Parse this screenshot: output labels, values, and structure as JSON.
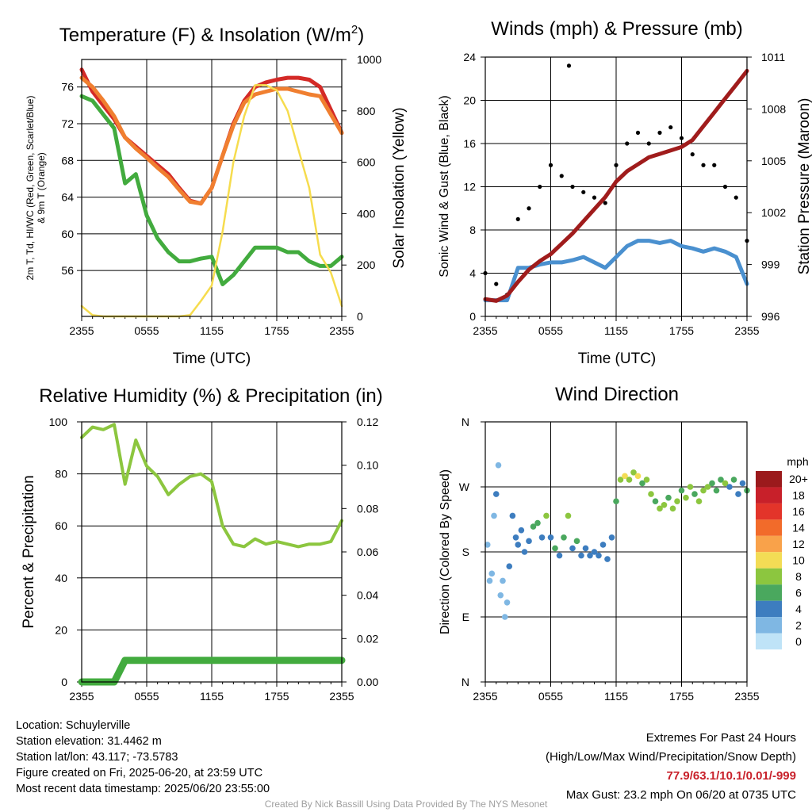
{
  "chart_data": [
    {
      "type": "line",
      "title": "Temperature (F) & Insolation (W/m²)",
      "title_main": "Temperature (F) & Insolation (W/m",
      "title_sup": "2",
      "title_end": ")",
      "xlabel": "Time (UTC)",
      "ylabel_lines": [
        "2m T, Td, HI/WC (Red, Green, Scarlet/Blue)",
        "& 9m T (Orange)"
      ],
      "ylabel_lines_note": "subscript d in Td",
      "y2label": "Solar Insolation (Yellow)",
      "xticks": [
        "2355",
        "0555",
        "1155",
        "1755",
        "2355"
      ],
      "ylim": [
        51,
        79
      ],
      "yticks": [
        56,
        60,
        64,
        68,
        72,
        76
      ],
      "y2lim": [
        0,
        1000
      ],
      "y2ticks": [
        0,
        200,
        400,
        600,
        800,
        1000
      ],
      "grid": true,
      "x": [
        0,
        1,
        2,
        3,
        4,
        5,
        6,
        7,
        8,
        9,
        10,
        11,
        12,
        13,
        14,
        15,
        16,
        17,
        18,
        19,
        20,
        21,
        22,
        23,
        24
      ],
      "series": [
        {
          "name": "2m T (Red)",
          "axis": "left",
          "color": "#d42a27",
          "values": [
            77.9,
            75.5,
            74.0,
            72.5,
            70.5,
            69.5,
            68.5,
            67.5,
            66.5,
            65.0,
            63.6,
            63.3,
            65.0,
            68.5,
            72.0,
            74.5,
            76.0,
            76.5,
            76.8,
            77.0,
            77.0,
            76.8,
            76.0,
            73.5,
            71.0
          ]
        },
        {
          "name": "9m T (Orange)",
          "axis": "left",
          "color": "#f07f30",
          "values": [
            77.0,
            76.0,
            74.5,
            72.8,
            70.5,
            69.3,
            68.3,
            67.2,
            66.2,
            64.8,
            63.5,
            63.3,
            65.0,
            68.5,
            71.8,
            74.3,
            75.2,
            75.5,
            75.8,
            75.8,
            75.5,
            75.2,
            75.0,
            73.0,
            71.0
          ]
        },
        {
          "name": "2m Td (Green)",
          "axis": "left",
          "color": "#42ab3e",
          "values": [
            75.0,
            74.5,
            73.0,
            71.5,
            65.5,
            66.5,
            62.0,
            59.5,
            58.0,
            57.0,
            57.0,
            57.3,
            57.5,
            54.5,
            55.5,
            57.0,
            58.5,
            58.5,
            58.5,
            58.0,
            58.0,
            57.0,
            56.5,
            56.5,
            57.5
          ]
        },
        {
          "name": "Solar Insolation (Yellow)",
          "axis": "right",
          "color": "#f6dc4e",
          "values": [
            40,
            5,
            0,
            0,
            0,
            0,
            0,
            0,
            0,
            0,
            5,
            60,
            120,
            330,
            600,
            780,
            900,
            900,
            880,
            800,
            650,
            500,
            240,
            170,
            40
          ]
        }
      ]
    },
    {
      "type": "line",
      "title": "Winds (mph) & Pressure (mb)",
      "xlabel": "Time (UTC)",
      "ylabel": "Sonic Wind & Gust (Blue, Black)",
      "y2label": "Station Pressure (Maroon)",
      "xticks": [
        "2355",
        "0555",
        "1155",
        "1755",
        "2355"
      ],
      "ylim": [
        0,
        24
      ],
      "yticks": [
        0,
        4,
        8,
        12,
        16,
        20,
        24
      ],
      "y2lim": [
        996,
        1011
      ],
      "y2ticks": [
        996,
        999,
        1002,
        1005,
        1008,
        1011
      ],
      "grid": true,
      "x": [
        0,
        1,
        2,
        3,
        4,
        5,
        6,
        7,
        8,
        9,
        10,
        11,
        12,
        13,
        14,
        15,
        16,
        17,
        18,
        19,
        20,
        21,
        22,
        23,
        24
      ],
      "series": [
        {
          "name": "Sonic Wind (Blue)",
          "axis": "left",
          "color": "#4a90cf",
          "values": [
            1.5,
            1.5,
            1.5,
            4.5,
            4.5,
            4.8,
            5.0,
            5.0,
            5.2,
            5.5,
            5.0,
            4.5,
            5.5,
            6.5,
            7.0,
            7.0,
            6.8,
            7.0,
            6.5,
            6.3,
            6.0,
            6.3,
            6.0,
            5.5,
            3.0
          ]
        },
        {
          "name": "Gust (Black)",
          "axis": "left",
          "color": "#000000",
          "values": [
            4.0,
            3.0,
            2.0,
            9.0,
            10.0,
            12.0,
            14.0,
            13.0,
            12.0,
            11.5,
            11.0,
            10.5,
            14.0,
            16.0,
            17.0,
            16.0,
            17.0,
            17.5,
            16.5,
            15.0,
            14.0,
            14.0,
            12.0,
            11.0,
            7.0
          ]
        },
        {
          "name": "Station Pressure (Maroon)",
          "axis": "right",
          "color": "#a01c1c",
          "values": [
            997.0,
            996.9,
            997.2,
            998.0,
            998.7,
            999.2,
            999.6,
            1000.2,
            1000.8,
            1001.5,
            1002.2,
            1002.9,
            1003.8,
            1004.4,
            1004.8,
            1005.2,
            1005.4,
            1005.6,
            1005.8,
            1006.2,
            1007.0,
            1007.8,
            1008.6,
            1009.4,
            1010.2
          ]
        }
      ],
      "max_gust_marker": {
        "x": 7.67,
        "y": 23.2
      }
    },
    {
      "type": "line",
      "title": "Relative Humidity (%) & Precipitation (in)",
      "xlabel": "",
      "ylabel": "Percent & Precipitation",
      "xticks": [
        "2355",
        "0555",
        "1155",
        "1755",
        "2355"
      ],
      "ylim": [
        0,
        100
      ],
      "yticks": [
        0,
        20,
        40,
        60,
        80,
        100
      ],
      "y2lim": [
        0,
        0.12
      ],
      "y2ticks": [
        "0.00",
        "0.02",
        "0.04",
        "0.06",
        "0.08",
        "0.10",
        "0.12"
      ],
      "grid": true,
      "x": [
        0,
        1,
        2,
        3,
        4,
        5,
        6,
        7,
        8,
        9,
        10,
        11,
        12,
        13,
        14,
        15,
        16,
        17,
        18,
        19,
        20,
        21,
        22,
        23,
        24
      ],
      "series": [
        {
          "name": "Relative Humidity",
          "axis": "left",
          "color": "#8cc63f",
          "values": [
            94,
            98,
            97,
            99,
            76,
            93,
            83,
            79,
            72,
            76,
            79,
            80,
            77,
            60,
            53,
            52,
            55,
            53,
            54,
            53,
            52,
            53,
            53,
            54,
            62
          ]
        },
        {
          "name": "Precipitation",
          "axis": "right",
          "color": "#42ab3e",
          "values": [
            0,
            0,
            0,
            0,
            0.01,
            0.01,
            0.01,
            0.01,
            0.01,
            0.01,
            0.01,
            0.01,
            0.01,
            0.01,
            0.01,
            0.01,
            0.01,
            0.01,
            0.01,
            0.01,
            0.01,
            0.01,
            0.01,
            0.01,
            0.01
          ]
        }
      ]
    },
    {
      "type": "scatter",
      "title": "Wind Direction",
      "xlabel": "",
      "ylabel": "Direction (Colored By Speed)",
      "xticks": [
        "2355",
        "0555",
        "1155",
        "1755",
        "2355"
      ],
      "yticks": [
        "N",
        "E",
        "S",
        "W",
        "N"
      ],
      "ylim": [
        0,
        360
      ],
      "grid": true,
      "colorbar_title": "mph",
      "colorbar_labels": [
        "20+",
        "18",
        "16",
        "14",
        "12",
        "10",
        "8",
        "6",
        "4",
        "2",
        "0"
      ],
      "colorbar_colors": [
        "#9b1a1c",
        "#c8202a",
        "#e3342a",
        "#f26b2a",
        "#f9a24a",
        "#f3dc55",
        "#8cc63f",
        "#4aa85e",
        "#3d7dbf",
        "#7fb7e3",
        "#bfe3f7"
      ],
      "points": [
        [
          0.2,
          190,
          1
        ],
        [
          0.4,
          140,
          1
        ],
        [
          0.6,
          150,
          1
        ],
        [
          0.8,
          230,
          2
        ],
        [
          1.0,
          260,
          4
        ],
        [
          1.2,
          300,
          1
        ],
        [
          1.4,
          120,
          1
        ],
        [
          1.6,
          140,
          1
        ],
        [
          1.8,
          90,
          1
        ],
        [
          2.0,
          110,
          2
        ],
        [
          2.2,
          160,
          3
        ],
        [
          2.5,
          230,
          4
        ],
        [
          2.8,
          200,
          4
        ],
        [
          3.0,
          190,
          3
        ],
        [
          3.3,
          210,
          4
        ],
        [
          3.6,
          180,
          4
        ],
        [
          4.0,
          195,
          4
        ],
        [
          4.4,
          215,
          5
        ],
        [
          4.8,
          220,
          6
        ],
        [
          5.2,
          200,
          4
        ],
        [
          5.6,
          230,
          7
        ],
        [
          6.0,
          200,
          4
        ],
        [
          6.4,
          185,
          5
        ],
        [
          6.8,
          175,
          4
        ],
        [
          7.2,
          200,
          5
        ],
        [
          7.6,
          230,
          7
        ],
        [
          8.0,
          185,
          4
        ],
        [
          8.4,
          195,
          5
        ],
        [
          8.8,
          175,
          4
        ],
        [
          9.2,
          185,
          3
        ],
        [
          9.6,
          175,
          4
        ],
        [
          10.0,
          180,
          4
        ],
        [
          10.4,
          175,
          4
        ],
        [
          10.8,
          190,
          4
        ],
        [
          11.2,
          170,
          3
        ],
        [
          11.6,
          200,
          4
        ],
        [
          12.0,
          250,
          5
        ],
        [
          12.4,
          280,
          7
        ],
        [
          12.8,
          285,
          9
        ],
        [
          13.2,
          280,
          8
        ],
        [
          13.6,
          290,
          8
        ],
        [
          14.0,
          285,
          10
        ],
        [
          14.4,
          275,
          6
        ],
        [
          14.8,
          280,
          7
        ],
        [
          15.2,
          260,
          7
        ],
        [
          15.6,
          250,
          6
        ],
        [
          16.0,
          240,
          8
        ],
        [
          16.4,
          245,
          7
        ],
        [
          16.8,
          255,
          6
        ],
        [
          17.2,
          240,
          7
        ],
        [
          17.6,
          250,
          8
        ],
        [
          18.0,
          265,
          6
        ],
        [
          18.4,
          255,
          7
        ],
        [
          18.8,
          270,
          8
        ],
        [
          19.2,
          260,
          6
        ],
        [
          19.6,
          250,
          7
        ],
        [
          20.0,
          265,
          8
        ],
        [
          20.4,
          270,
          7
        ],
        [
          20.8,
          275,
          6
        ],
        [
          21.2,
          265,
          5
        ],
        [
          21.6,
          280,
          6
        ],
        [
          22.0,
          275,
          7
        ],
        [
          22.4,
          270,
          4
        ],
        [
          22.8,
          280,
          5
        ],
        [
          23.2,
          260,
          3
        ],
        [
          23.6,
          275,
          4
        ],
        [
          24.0,
          265,
          5
        ]
      ]
    }
  ],
  "info": {
    "location": "Location: Schuylerville",
    "elevation": "Station elevation: 31.4462 m",
    "latlon": "Station lat/lon: 43.117; -73.5783",
    "created": "Figure created on Fri, 2025-06-20, at 23:59 UTC",
    "recent": "Most recent data timestamp: 2025/06/20 23:55:00"
  },
  "extremes": {
    "title": "Extremes For Past 24 Hours",
    "subtitle": "(High/Low/Max Wind/Precipitation/Snow Depth)",
    "values": "77.9/63.1/10.1/0.01/-999",
    "max_gust": "Max Gust: 23.2 mph On 06/20 at 0735 UTC"
  },
  "credit": "Created By Nick Bassill Using Data Provided By The NYS Mesonet"
}
